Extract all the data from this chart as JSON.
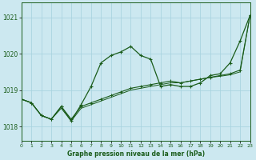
{
  "title": "Graphe pression niveau de la mer (hPa)",
  "bg_color": "#cce8f0",
  "grid_color": "#aad4e0",
  "line_color": "#1a5c1a",
  "x_min": 0,
  "x_max": 23,
  "y_min": 1017.6,
  "y_max": 1021.4,
  "yticks": [
    1018,
    1019,
    1020,
    1021
  ],
  "xticks": [
    0,
    1,
    2,
    3,
    4,
    5,
    6,
    7,
    8,
    9,
    10,
    11,
    12,
    13,
    14,
    15,
    16,
    17,
    18,
    19,
    20,
    21,
    22,
    23
  ],
  "series1": [
    1018.75,
    1018.65,
    1018.3,
    1018.2,
    1018.55,
    1018.15,
    1018.6,
    1019.1,
    1019.75,
    1019.95,
    1020.05,
    1020.2,
    1019.95,
    1019.85,
    1019.1,
    1019.15,
    1019.1,
    1019.1,
    1019.2,
    1019.4,
    1019.45,
    1019.75,
    1020.35,
    1021.05
  ],
  "series2": [
    1018.75,
    1018.65,
    1018.3,
    1018.2,
    1018.55,
    1018.2,
    1018.55,
    1018.65,
    1018.75,
    1018.85,
    1018.95,
    1019.05,
    1019.1,
    1019.15,
    1019.2,
    1019.25,
    1019.2,
    1019.25,
    1019.3,
    1019.35,
    1019.4,
    1019.45,
    1019.55,
    1021.05
  ],
  "series3": [
    1018.75,
    1018.65,
    1018.3,
    1018.2,
    1018.5,
    1018.15,
    1018.5,
    1018.6,
    1018.7,
    1018.8,
    1018.9,
    1019.0,
    1019.05,
    1019.1,
    1019.15,
    1019.2,
    1019.2,
    1019.25,
    1019.3,
    1019.35,
    1019.38,
    1019.42,
    1019.5,
    1021.05
  ]
}
